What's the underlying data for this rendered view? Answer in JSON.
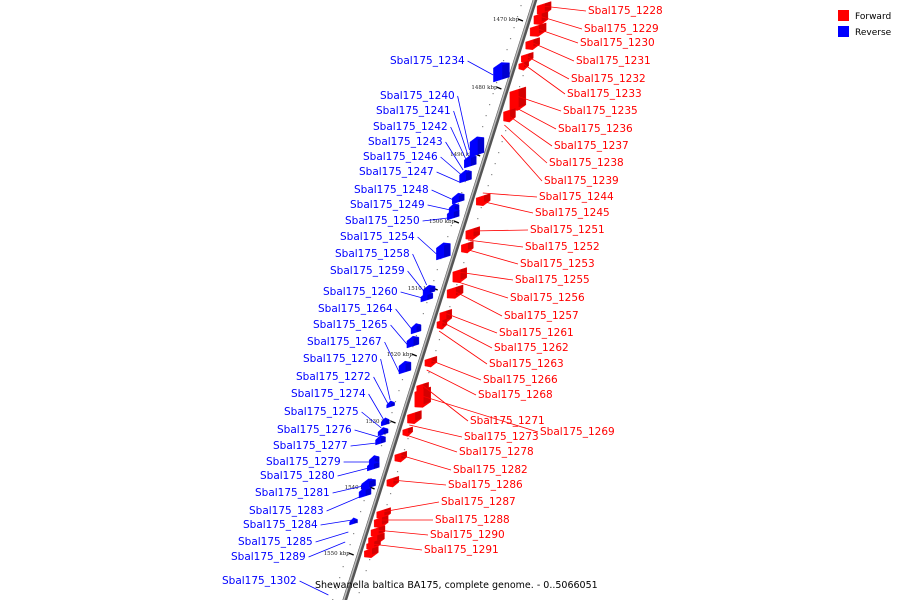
{
  "caption": "Shewanella baltica BA175, complete genome. - 0..5066051",
  "legend": [
    {
      "label": "Forward",
      "color": "#ff0000"
    },
    {
      "label": "Reverse",
      "color": "#0000ff"
    }
  ],
  "colors": {
    "forward": "#ff0000",
    "reverse": "#0000ff",
    "backbone": "#8c8c8c"
  },
  "ticks": [
    "1470 kbp",
    "1480 kbp",
    "1490 kbp",
    "1500 kbp",
    "1510 kbp",
    "1520 kbp",
    "1530 kbp",
    "1540 kbp",
    "1550 kbp"
  ],
  "forward_genes": [
    "Sbal175_1228",
    "Sbal175_1229",
    "Sbal175_1230",
    "Sbal175_1231",
    "Sbal175_1232",
    "Sbal175_1233",
    "Sbal175_1235",
    "Sbal175_1236",
    "Sbal175_1237",
    "Sbal175_1238",
    "Sbal175_1239",
    "Sbal175_1244",
    "Sbal175_1245",
    "Sbal175_1251",
    "Sbal175_1252",
    "Sbal175_1253",
    "Sbal175_1255",
    "Sbal175_1256",
    "Sbal175_1257",
    "Sbal175_1261",
    "Sbal175_1262",
    "Sbal175_1263",
    "Sbal175_1266",
    "Sbal175_1268",
    "Sbal175_1271",
    "Sbal175_1269",
    "Sbal175_1273",
    "Sbal175_1278",
    "Sbal175_1282",
    "Sbal175_1286",
    "Sbal175_1287",
    "Sbal175_1288",
    "Sbal175_1290",
    "Sbal175_1291"
  ],
  "reverse_genes": [
    "Sbal175_1234",
    "Sbal175_1240",
    "Sbal175_1241",
    "Sbal175_1242",
    "Sbal175_1243",
    "Sbal175_1246",
    "Sbal175_1247",
    "Sbal175_1248",
    "Sbal175_1249",
    "Sbal175_1250",
    "Sbal175_1254",
    "Sbal175_1258",
    "Sbal175_1259",
    "Sbal175_1260",
    "Sbal175_1264",
    "Sbal175_1265",
    "Sbal175_1267",
    "Sbal175_1270",
    "Sbal175_1272",
    "Sbal175_1274",
    "Sbal175_1275",
    "Sbal175_1276",
    "Sbal175_1277",
    "Sbal175_1279",
    "Sbal175_1280",
    "Sbal175_1281",
    "Sbal175_1283",
    "Sbal175_1284",
    "Sbal175_1285",
    "Sbal175_1289",
    "Sbal175_1302"
  ]
}
